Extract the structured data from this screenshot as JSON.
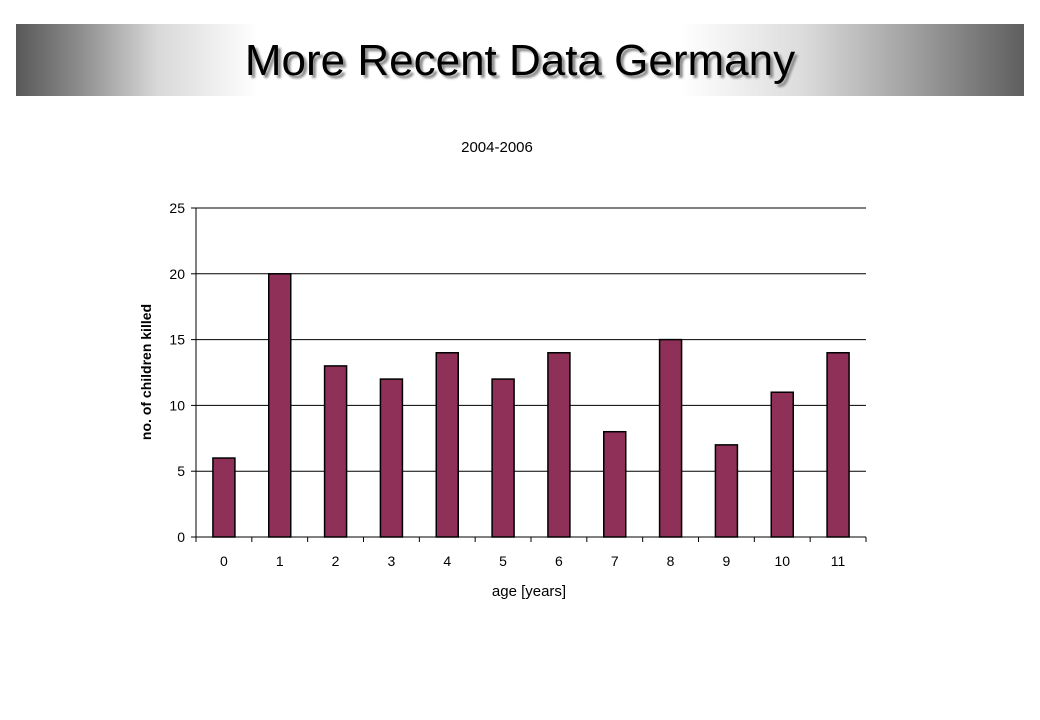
{
  "slide": {
    "title": "More Recent Data Germany"
  },
  "chart_data": {
    "type": "bar",
    "title": "2004-2006",
    "xlabel": "age [years]",
    "ylabel": "no. of children killed",
    "categories": [
      "0",
      "1",
      "2",
      "3",
      "4",
      "5",
      "6",
      "7",
      "8",
      "9",
      "10",
      "11"
    ],
    "values": [
      6,
      20,
      13,
      12,
      14,
      12,
      14,
      8,
      15,
      7,
      11,
      14
    ],
    "ylim": [
      0,
      25
    ],
    "yticks": [
      0,
      5,
      10,
      15,
      20,
      25
    ],
    "grid": true,
    "legend": "none",
    "bar_color": "#8e3058"
  }
}
